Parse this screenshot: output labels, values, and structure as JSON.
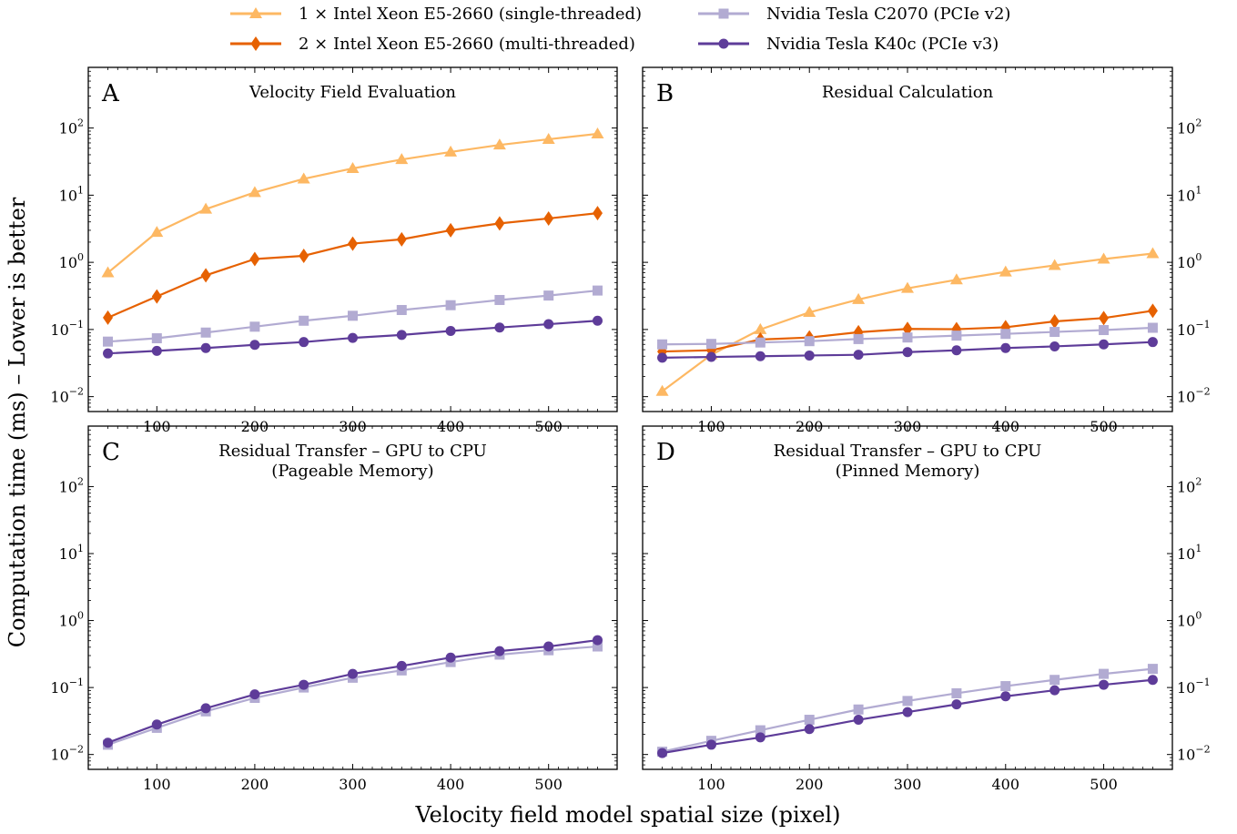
{
  "figure": {
    "xlabel": "Velocity field model spatial size (pixel)",
    "ylabel": "Computation time (ms) – Lower is better"
  },
  "legend": {
    "placement": "top-center",
    "entries": [
      {
        "key": "cpu1",
        "label": "1 × Intel Xeon E5-2660 (single-threaded)"
      },
      {
        "key": "cpu2",
        "label": "2 × Intel Xeon E5-2660 (multi-threaded)"
      },
      {
        "key": "c2070",
        "label": "Nvidia Tesla C2070 (PCIe v2)"
      },
      {
        "key": "k40c",
        "label": "Nvidia Tesla K40c (PCIe v3)"
      }
    ]
  },
  "series_styles": {
    "cpu1": {
      "color": "#fdb863",
      "marker": "triangle"
    },
    "cpu2": {
      "color": "#e66101",
      "marker": "diamond"
    },
    "c2070": {
      "color": "#b2abd2",
      "marker": "square"
    },
    "k40c": {
      "color": "#5e3c99",
      "marker": "circle"
    }
  },
  "chart_data": [
    {
      "type": "line",
      "letter": "A",
      "title": [
        "Velocity Field Evaluation"
      ],
      "yscale": "log",
      "ylim": [
        0.006,
        800
      ],
      "xlim": [
        30,
        570
      ],
      "xticks": [
        100,
        200,
        300,
        400,
        500
      ],
      "yticks": [
        {
          "value": 0.01,
          "label": "10^-2"
        },
        {
          "value": 0.1,
          "label": "10^-1"
        },
        {
          "value": 1,
          "label": "10^0"
        },
        {
          "value": 10,
          "label": "10^1"
        },
        {
          "value": 100,
          "label": "10^2"
        }
      ],
      "yticks_side": "left",
      "x": [
        50,
        100,
        150,
        200,
        250,
        300,
        350,
        400,
        450,
        500,
        550
      ],
      "series": [
        {
          "key": "cpu1",
          "values": [
            0.7,
            2.8,
            6.2,
            11,
            17.5,
            25,
            34,
            44,
            56,
            68,
            82
          ]
        },
        {
          "key": "cpu2",
          "values": [
            0.15,
            0.31,
            0.64,
            1.12,
            1.25,
            1.9,
            2.2,
            3.0,
            3.8,
            4.5,
            5.4
          ]
        },
        {
          "key": "c2070",
          "values": [
            0.066,
            0.074,
            0.09,
            0.11,
            0.135,
            0.16,
            0.195,
            0.23,
            0.275,
            0.32,
            0.38
          ]
        },
        {
          "key": "k40c",
          "values": [
            0.044,
            0.048,
            0.053,
            0.059,
            0.065,
            0.075,
            0.083,
            0.095,
            0.107,
            0.12,
            0.135
          ]
        }
      ]
    },
    {
      "type": "line",
      "letter": "B",
      "title": [
        "Residual Calculation"
      ],
      "yscale": "log",
      "ylim": [
        0.006,
        800
      ],
      "xlim": [
        30,
        570
      ],
      "xticks": [
        100,
        200,
        300,
        400,
        500
      ],
      "yticks": [
        {
          "value": 0.01,
          "label": "10^-2"
        },
        {
          "value": 0.1,
          "label": "10^-1"
        },
        {
          "value": 1,
          "label": "10^0"
        },
        {
          "value": 10,
          "label": "10^1"
        },
        {
          "value": 100,
          "label": "10^2"
        }
      ],
      "yticks_side": "right",
      "x": [
        50,
        100,
        150,
        200,
        250,
        300,
        350,
        400,
        450,
        500,
        550
      ],
      "series": [
        {
          "key": "cpu1",
          "values": [
            0.012,
            0.042,
            0.1,
            0.18,
            0.28,
            0.41,
            0.55,
            0.72,
            0.9,
            1.12,
            1.35
          ]
        },
        {
          "key": "cpu2",
          "values": [
            0.047,
            0.049,
            0.071,
            0.076,
            0.091,
            0.102,
            0.101,
            0.108,
            0.132,
            0.148,
            0.19
          ]
        },
        {
          "key": "c2070",
          "values": [
            0.06,
            0.061,
            0.064,
            0.067,
            0.072,
            0.076,
            0.081,
            0.086,
            0.092,
            0.098,
            0.106
          ]
        },
        {
          "key": "k40c",
          "values": [
            0.038,
            0.039,
            0.04,
            0.041,
            0.042,
            0.046,
            0.049,
            0.053,
            0.056,
            0.06,
            0.065
          ]
        }
      ]
    },
    {
      "type": "line",
      "letter": "C",
      "title": [
        "Residual Transfer – GPU to CPU",
        "(Pageable Memory)"
      ],
      "yscale": "log",
      "ylim": [
        0.006,
        800
      ],
      "xlim": [
        30,
        570
      ],
      "xticks": [
        100,
        200,
        300,
        400,
        500
      ],
      "yticks": [
        {
          "value": 0.01,
          "label": "10^-2"
        },
        {
          "value": 0.1,
          "label": "10^-1"
        },
        {
          "value": 1,
          "label": "10^0"
        },
        {
          "value": 10,
          "label": "10^1"
        },
        {
          "value": 100,
          "label": "10^2"
        }
      ],
      "yticks_side": "left",
      "x": [
        50,
        100,
        150,
        200,
        250,
        300,
        350,
        400,
        450,
        500,
        550
      ],
      "series": [
        {
          "key": "c2070",
          "values": [
            0.014,
            0.025,
            0.044,
            0.07,
            0.1,
            0.14,
            0.18,
            0.24,
            0.31,
            0.36,
            0.41
          ]
        },
        {
          "key": "k40c",
          "values": [
            0.015,
            0.028,
            0.049,
            0.079,
            0.11,
            0.16,
            0.21,
            0.28,
            0.35,
            0.41,
            0.51
          ]
        }
      ]
    },
    {
      "type": "line",
      "letter": "D",
      "title": [
        "Residual Transfer – GPU to CPU",
        "(Pinned Memory)"
      ],
      "yscale": "log",
      "ylim": [
        0.006,
        800
      ],
      "xlim": [
        30,
        570
      ],
      "xticks": [
        100,
        200,
        300,
        400,
        500
      ],
      "yticks": [
        {
          "value": 0.01,
          "label": "10^-2"
        },
        {
          "value": 0.1,
          "label": "10^-1"
        },
        {
          "value": 1,
          "label": "10^0"
        },
        {
          "value": 10,
          "label": "10^1"
        },
        {
          "value": 100,
          "label": "10^2"
        }
      ],
      "yticks_side": "right",
      "x": [
        50,
        100,
        150,
        200,
        250,
        300,
        350,
        400,
        450,
        500,
        550
      ],
      "series": [
        {
          "key": "c2070",
          "values": [
            0.011,
            0.016,
            0.023,
            0.033,
            0.047,
            0.063,
            0.082,
            0.105,
            0.13,
            0.16,
            0.19
          ]
        },
        {
          "key": "k40c",
          "values": [
            0.0105,
            0.014,
            0.018,
            0.024,
            0.033,
            0.043,
            0.056,
            0.074,
            0.091,
            0.11,
            0.13
          ]
        }
      ]
    }
  ]
}
